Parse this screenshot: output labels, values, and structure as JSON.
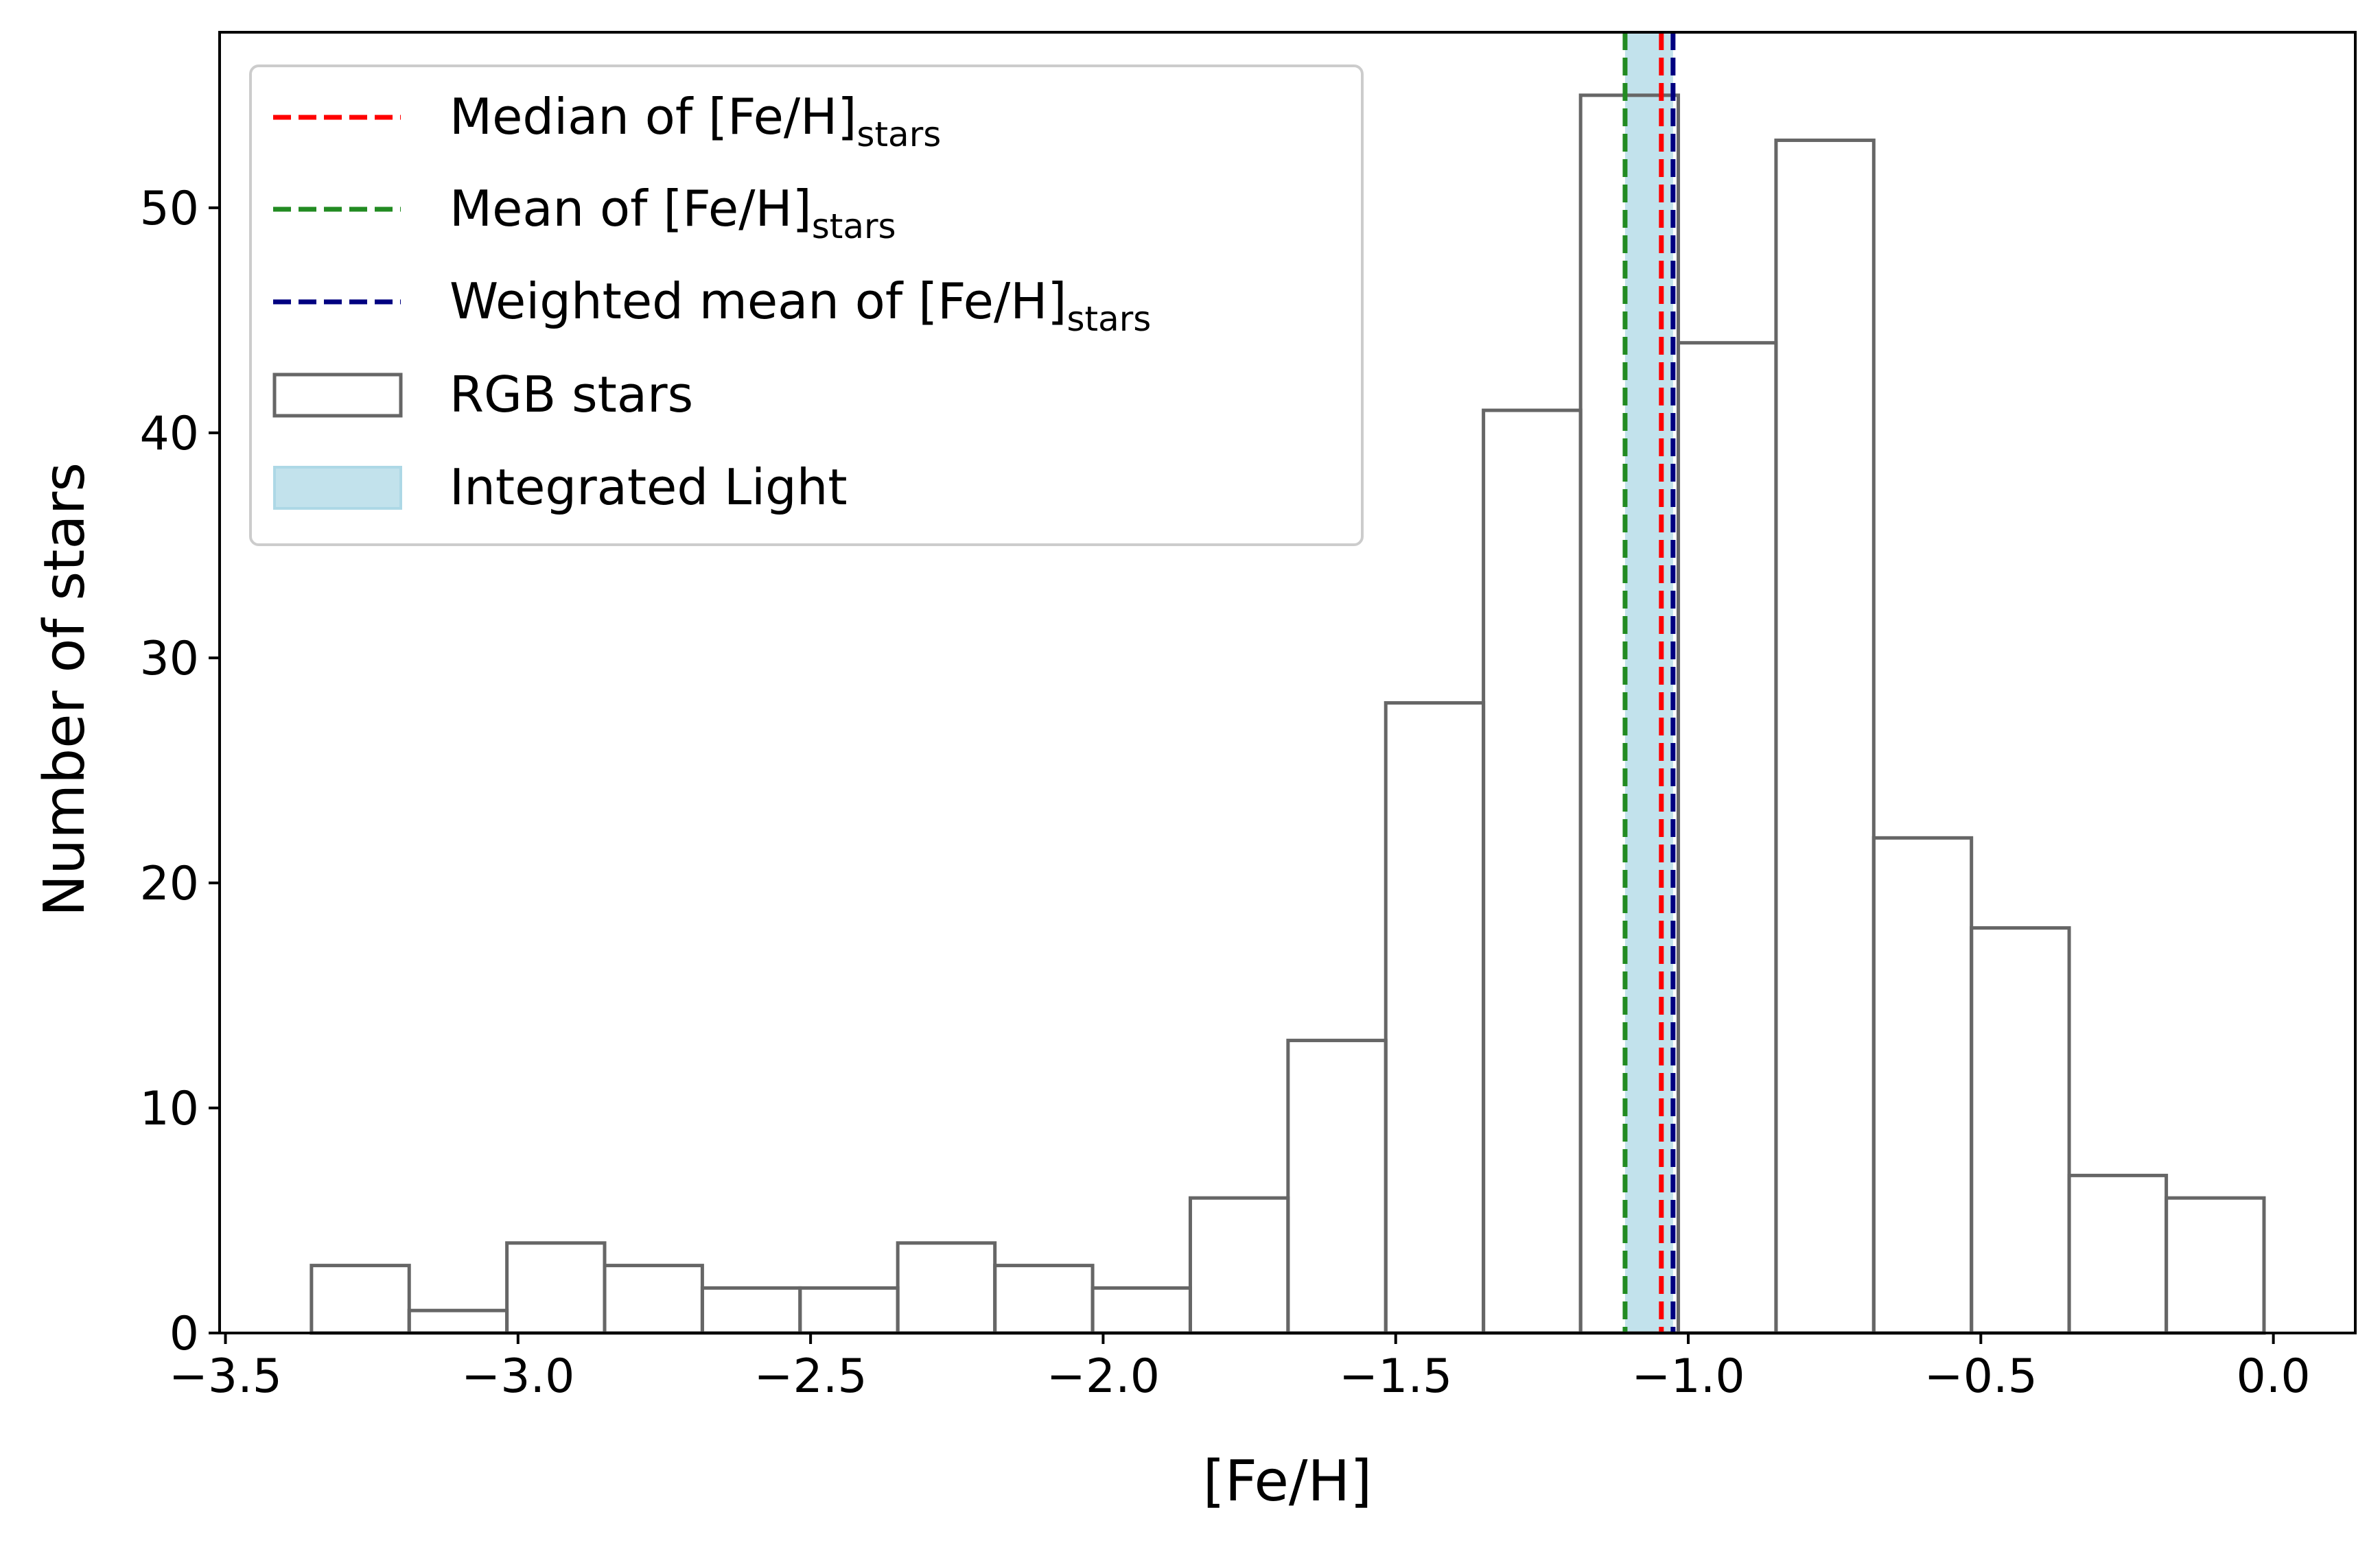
{
  "chart_data": {
    "type": "bar",
    "subtype": "histogram",
    "xlabel": "[Fe/H]",
    "ylabel": "Number of stars",
    "xlim": [
      -3.51,
      0.14
    ],
    "ylim": [
      0,
      57.8
    ],
    "xticks": [
      -3.5,
      -3.0,
      -2.5,
      -2.0,
      -1.5,
      -1.0,
      -0.5,
      0.0
    ],
    "xtick_labels": [
      "−3.5",
      "−3.0",
      "−2.5",
      "−2.0",
      "−1.5",
      "−1.0",
      "−0.5",
      "0.0"
    ],
    "yticks": [
      0,
      10,
      20,
      30,
      40,
      50
    ],
    "ytick_labels": [
      "0",
      "10",
      "20",
      "30",
      "40",
      "50"
    ],
    "grid": false,
    "bin_edges": [
      -3.353,
      -3.186,
      -3.019,
      -2.852,
      -2.685,
      -2.518,
      -2.351,
      -2.185,
      -2.018,
      -1.851,
      -1.684,
      -1.517,
      -1.35,
      -1.184,
      -1.017,
      -0.85,
      -0.683,
      -0.516,
      -0.349,
      -0.183,
      -0.016
    ],
    "counts": [
      3,
      1,
      4,
      3,
      2,
      2,
      4,
      3,
      2,
      6,
      13,
      28,
      41,
      55,
      44,
      53,
      22,
      18,
      7,
      6
    ],
    "vlines": [
      {
        "key": "median",
        "x": -1.046,
        "color": "#ff0000",
        "style": "dashed"
      },
      {
        "key": "mean",
        "x": -1.108,
        "color": "#228b22",
        "style": "dashed"
      },
      {
        "key": "weighted",
        "x": -1.026,
        "color": "#000080",
        "style": "dashed"
      }
    ],
    "band": {
      "x0": -1.108,
      "x1": -1.026,
      "color": "#add8e6"
    },
    "legend": {
      "position": "upper-left",
      "entries": [
        {
          "key": "median",
          "kind": "line",
          "color": "#ff0000",
          "label": "Median of [Fe/H]",
          "sub": "stars"
        },
        {
          "key": "mean",
          "kind": "line",
          "color": "#228b22",
          "label": "Mean of [Fe/H]",
          "sub": "stars"
        },
        {
          "key": "weighted",
          "kind": "line",
          "color": "#000080",
          "label": "Weighted mean of [Fe/H]",
          "sub": "stars"
        },
        {
          "key": "rgb",
          "kind": "box",
          "color": "#666666",
          "label": "RGB stars",
          "sub": ""
        },
        {
          "key": "il",
          "kind": "patch",
          "color": "#add8e6",
          "label": "Integrated Light",
          "sub": ""
        }
      ]
    },
    "colors": {
      "bar_edge": "#666666",
      "axes": "#000000"
    }
  }
}
